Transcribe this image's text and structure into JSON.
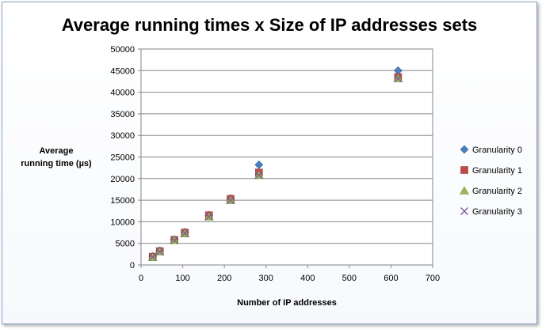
{
  "chart_data": {
    "type": "scatter",
    "title": "Average running times x Size of IP addresses sets",
    "xlabel": "Number of IP addresses",
    "ylabel": [
      "Average",
      "running time (µs)"
    ],
    "xlim": [
      0,
      700
    ],
    "ylim": [
      0,
      50000
    ],
    "xticks": [
      0,
      100,
      200,
      300,
      400,
      500,
      600,
      700
    ],
    "yticks": [
      0,
      5000,
      10000,
      15000,
      20000,
      25000,
      30000,
      35000,
      40000,
      45000,
      50000
    ],
    "grid": "horizontal",
    "legend_position": "right",
    "series": [
      {
        "name": "Granularity 0",
        "marker": "diamond",
        "color": "#4a7ebb",
        "points": [
          [
            28,
            2000
          ],
          [
            45,
            3300
          ],
          [
            80,
            5900
          ],
          [
            105,
            7600
          ],
          [
            163,
            11500
          ],
          [
            215,
            15400
          ],
          [
            283,
            23200
          ],
          [
            617,
            45000
          ]
        ]
      },
      {
        "name": "Granularity 1",
        "marker": "square",
        "color": "#be4b48",
        "points": [
          [
            28,
            1900
          ],
          [
            45,
            3200
          ],
          [
            80,
            5800
          ],
          [
            105,
            7500
          ],
          [
            163,
            11500
          ],
          [
            215,
            15300
          ],
          [
            283,
            21400
          ],
          [
            617,
            43500
          ]
        ]
      },
      {
        "name": "Granularity 2",
        "marker": "triangle",
        "color": "#98b954",
        "points": [
          [
            28,
            1800
          ],
          [
            45,
            3100
          ],
          [
            80,
            5700
          ],
          [
            105,
            7300
          ],
          [
            163,
            11200
          ],
          [
            215,
            15000
          ],
          [
            283,
            20800
          ],
          [
            617,
            43200
          ]
        ]
      },
      {
        "name": "Granularity 3",
        "marker": "x",
        "color": "#7d60a0",
        "points": [
          [
            28,
            1800
          ],
          [
            45,
            3100
          ],
          [
            80,
            5700
          ],
          [
            105,
            7300
          ],
          [
            163,
            11200
          ],
          [
            215,
            15000
          ],
          [
            283,
            20800
          ],
          [
            617,
            43200
          ]
        ]
      }
    ]
  }
}
